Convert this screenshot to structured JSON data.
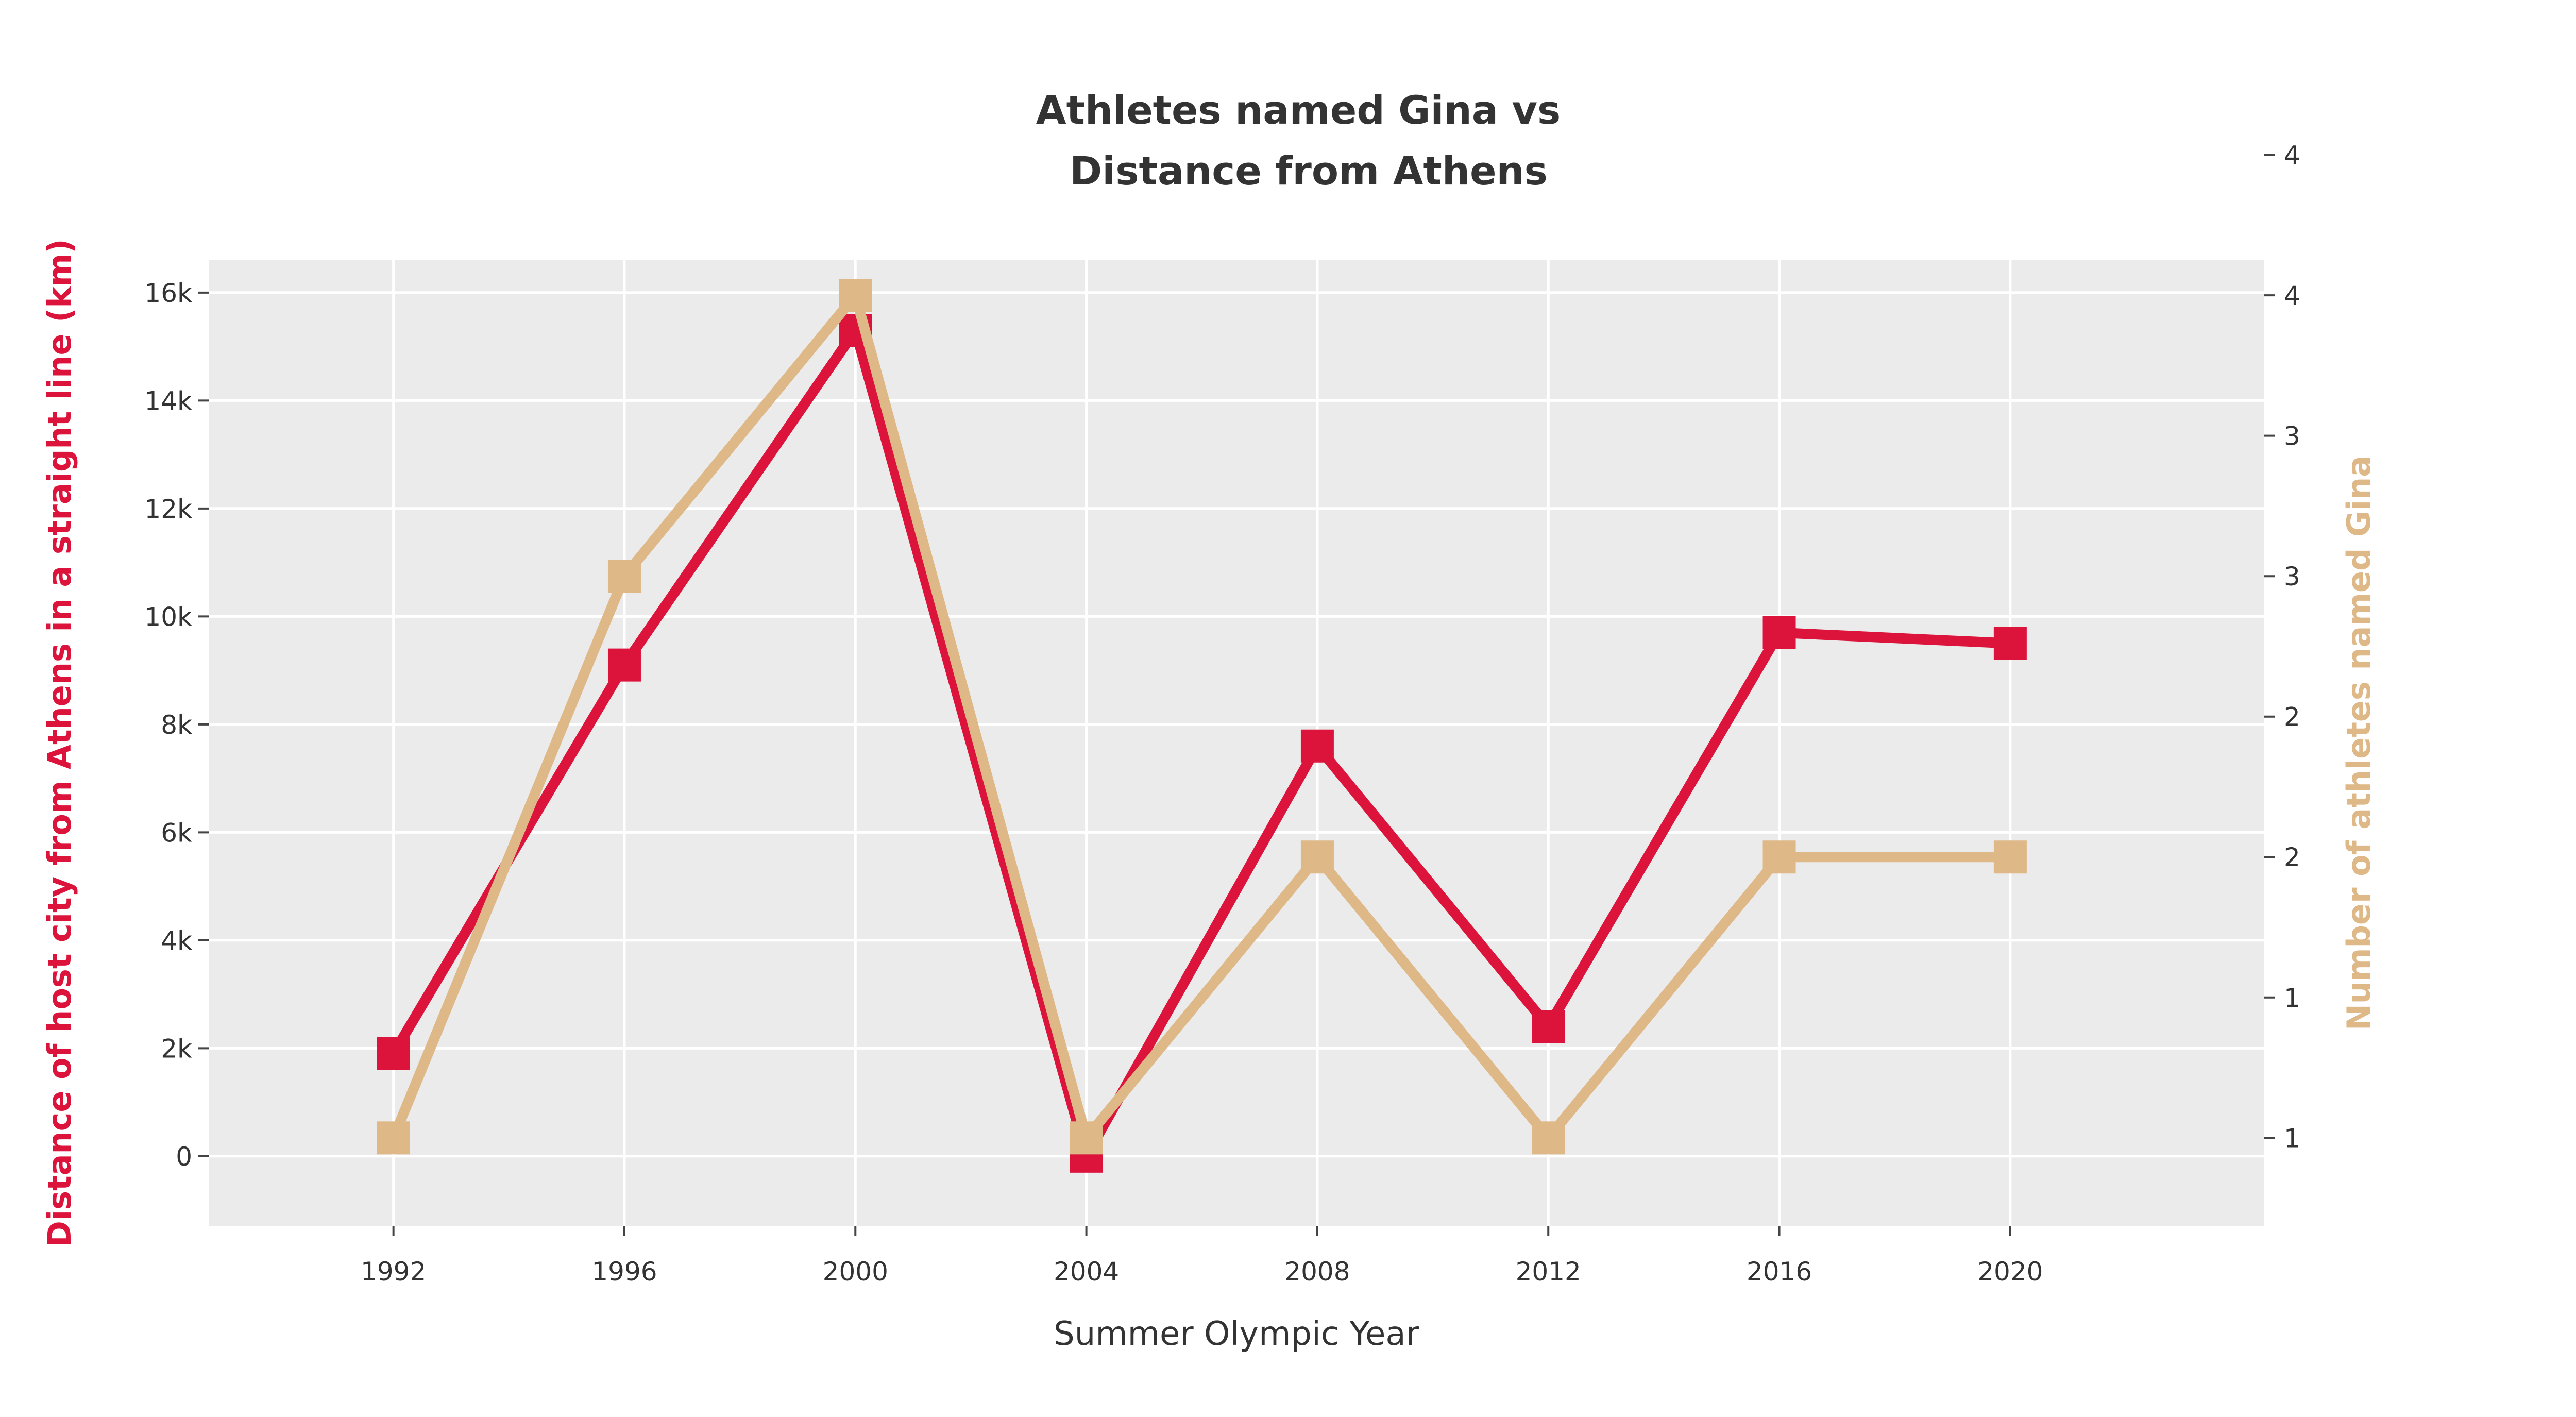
{
  "chart_data": {
    "type": "line",
    "title_line1": "Athletes named Gina vs",
    "title_line2": "Distance from Athens",
    "xlabel": "Summer Olympic Year",
    "ylabel_left": "Distance of host city from Athens in a straight line (km)",
    "ylabel_right": "Number of athletes named Gina",
    "x": [
      1992,
      1996,
      2000,
      2004,
      2008,
      2012,
      2016,
      2020
    ],
    "xlim": [
      1988.8,
      2024.4
    ],
    "y_left_lim": [
      -1300,
      16600
    ],
    "y_right_lim": [
      0.685,
      4.125
    ],
    "x_ticks": [
      "1992",
      "1996",
      "2000",
      "2004",
      "2008",
      "2012",
      "2016",
      "2020"
    ],
    "y_left_ticks": [
      {
        "value": 0,
        "label": "0"
      },
      {
        "value": 2000,
        "label": "2k"
      },
      {
        "value": 4000,
        "label": "4k"
      },
      {
        "value": 6000,
        "label": "6k"
      },
      {
        "value": 8000,
        "label": "8k"
      },
      {
        "value": 10000,
        "label": "10k"
      },
      {
        "value": 12000,
        "label": "12k"
      },
      {
        "value": 14000,
        "label": "14k"
      },
      {
        "value": 16000,
        "label": "16k"
      }
    ],
    "y_right_ticks": [
      {
        "value": 1.0,
        "label": "1"
      },
      {
        "value": 1.5,
        "label": "1"
      },
      {
        "value": 2.0,
        "label": "2"
      },
      {
        "value": 2.5,
        "label": "2"
      },
      {
        "value": 3.0,
        "label": "3"
      },
      {
        "value": 3.5,
        "label": "3"
      },
      {
        "value": 4.0,
        "label": "4"
      },
      {
        "value": 4.5,
        "label": "4"
      }
    ],
    "series": [
      {
        "name": "Distance from Athens",
        "axis": "left",
        "color": "#DC143C",
        "values": [
          1900,
          9100,
          15300,
          0,
          7600,
          2400,
          9700,
          9500
        ]
      },
      {
        "name": "Athletes named Gina",
        "axis": "right",
        "color": "#DEB887",
        "values": [
          1,
          3,
          4,
          1,
          2,
          1,
          2,
          2
        ]
      }
    ],
    "grid": true,
    "colors": {
      "background": "#ffffff",
      "plot_bg": "#ebebeb",
      "grid": "#ffffff",
      "text": "#333333",
      "left_axis_title": "#DC143C",
      "right_axis_title": "#DEB887"
    }
  }
}
